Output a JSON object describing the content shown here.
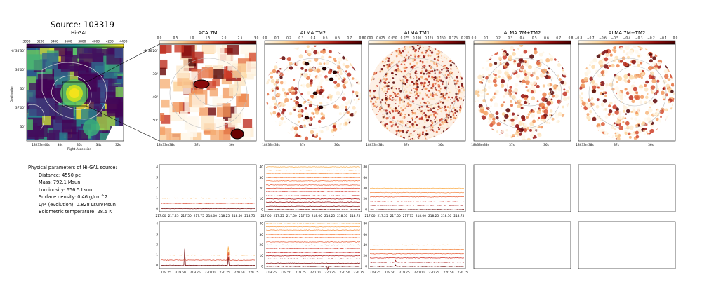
{
  "source_title": "Source: 103319",
  "params": {
    "heading": "Physical parameters of Hi-GAL source:",
    "lines": [
      "Distance: 4550 pc",
      "Mass: 792.1 Msun",
      "Luminosity: 656.5 Lsun",
      "Surface density: 0.46 g/cm^2",
      "L/M (evolution): 0.828 Lsun/Msun",
      "Bolometric temperature: 28.5 K"
    ]
  },
  "colors": {
    "accent": "#a40e0e",
    "viridis_low": "#2c5a8c",
    "viridis_high": "#f4e21b"
  },
  "chart_data": [
    {
      "type": "heatmap",
      "title": "Hi-GAL",
      "colorbar_ticks": [
        "3000",
        "3200",
        "3400",
        "3600",
        "3800",
        "4000",
        "4200",
        "4400"
      ],
      "xlabel": "Right Ascension",
      "ylabel": "Declination",
      "x_ticks": [
        "18h33m40s",
        "38s",
        "36s",
        "34s",
        "32s"
      ],
      "y_ticks": [
        "-8°35'30\"",
        "36'00\"",
        "30\"",
        "37'00\"",
        "30\""
      ]
    },
    {
      "type": "heatmap",
      "title": "ACA 7M",
      "colorbar_ticks": [
        "0.0",
        "0.5",
        "1.0",
        "1.5",
        "2.0",
        "2.5",
        "3.0"
      ],
      "x_ticks": [
        "18h33m38s",
        "37s",
        "36s"
      ],
      "y_ticks": [
        "-8°36'20\"",
        "30\"",
        "40\"",
        "50\""
      ]
    },
    {
      "type": "heatmap",
      "title": "ALMA TM2",
      "colorbar_ticks": [
        "0.0",
        "0.1",
        "0.2",
        "0.3",
        "0.4",
        "0.5",
        "0.6",
        "0.7",
        "0.8"
      ],
      "x_ticks": [
        "18h33m38s",
        "37s",
        "36s"
      ]
    },
    {
      "type": "heatmap",
      "title": "ALMA TM1",
      "colorbar_ticks": [
        "0.000",
        "0.025",
        "0.050",
        "0.075",
        "0.100",
        "0.125",
        "0.150",
        "0.175",
        "0.200"
      ],
      "x_ticks": [
        "18h33m38s",
        "37s",
        "36s"
      ]
    },
    {
      "type": "heatmap",
      "title": "ALMA 7M+TM2",
      "colorbar_ticks": [
        "0.0",
        "0.1",
        "0.2",
        "0.3",
        "0.4",
        "0.5",
        "0.6",
        "0.7",
        "0.8"
      ],
      "x_ticks": [
        "18h33m38s",
        "37s",
        "36s"
      ]
    },
    {
      "type": "heatmap",
      "title": "ALMA 7M+TM2",
      "colorbar_ticks": [
        "−0.8",
        "−0.7",
        "−0.6",
        "−0.5",
        "−0.4",
        "−0.3",
        "−0.2",
        "−0.1",
        "0.0"
      ],
      "x_ticks": [
        "18h33m38s",
        "37s",
        "36s"
      ]
    },
    {
      "type": "line",
      "panel": "ACA 7M spectra, window 1",
      "x_ticks": [
        "217.00",
        "217.25",
        "217.50",
        "217.75",
        "218.00",
        "218.25",
        "218.50",
        "218.75"
      ],
      "y_ticks": [
        "0",
        "1",
        "2",
        "3",
        "4"
      ],
      "ylim": [
        -0.3,
        4.2
      ],
      "series": [
        {
          "values": [
            0.0
          ]
        },
        {
          "values": [
            0.5
          ]
        },
        {
          "values": [
            1.0
          ]
        }
      ]
    },
    {
      "type": "line",
      "panel": "ALMA TM2 spectra, window 1",
      "x_ticks": [
        "217.00",
        "217.25",
        "217.50",
        "217.75",
        "218.00",
        "218.25",
        "218.50",
        "218.75"
      ],
      "y_ticks": [
        "0",
        "10",
        "20",
        "30",
        "40"
      ],
      "ylim": [
        -2,
        42
      ],
      "series": [
        {
          "values": [
            0
          ]
        },
        {
          "values": [
            3
          ]
        },
        {
          "values": [
            7
          ]
        },
        {
          "values": [
            10
          ]
        },
        {
          "values": [
            13
          ]
        },
        {
          "values": [
            17
          ]
        },
        {
          "values": [
            20
          ]
        },
        {
          "values": [
            23
          ]
        },
        {
          "values": [
            27
          ]
        },
        {
          "values": [
            30
          ]
        },
        {
          "values": [
            34
          ]
        },
        {
          "values": [
            37
          ]
        },
        {
          "values": [
            40
          ]
        }
      ]
    },
    {
      "type": "line",
      "panel": "ALMA TM1 spectra, window 1",
      "x_ticks": [
        "217.00",
        "217.25",
        "217.50",
        "217.75",
        "218.00",
        "218.25",
        "218.50",
        "218.75"
      ],
      "y_ticks": [
        "0",
        "20",
        "40",
        "60",
        "80"
      ],
      "ylim": [
        -4,
        84
      ],
      "series": [
        {
          "values": [
            0
          ]
        },
        {
          "values": [
            8
          ]
        },
        {
          "values": [
            16
          ]
        },
        {
          "values": [
            24
          ]
        },
        {
          "values": [
            32
          ]
        },
        {
          "values": [
            40
          ]
        }
      ]
    },
    {
      "type": "line",
      "panel": "ACA 7M spectra, window 2",
      "x_ticks": [
        "219.25",
        "219.50",
        "219.75",
        "220.00",
        "220.25",
        "220.50",
        "220.75"
      ],
      "y_ticks": [
        "0",
        "1",
        "2",
        "3",
        "4"
      ],
      "ylim": [
        -0.3,
        4.2
      ],
      "series": [
        {
          "values": [
            0.0
          ]
        },
        {
          "values": [
            0.5
          ]
        },
        {
          "values": [
            1.0
          ]
        }
      ]
    },
    {
      "type": "line",
      "panel": "ALMA TM2 spectra, window 2",
      "x_ticks": [
        "219.25",
        "219.50",
        "219.75",
        "220.00",
        "220.25",
        "220.50",
        "220.75"
      ],
      "y_ticks": [
        "0",
        "10",
        "20",
        "30",
        "40"
      ],
      "ylim": [
        -2,
        42
      ],
      "series": [
        {
          "values": [
            0
          ]
        },
        {
          "values": [
            3
          ]
        },
        {
          "values": [
            7
          ]
        },
        {
          "values": [
            10
          ]
        },
        {
          "values": [
            13
          ]
        },
        {
          "values": [
            17
          ]
        },
        {
          "values": [
            20
          ]
        },
        {
          "values": [
            23
          ]
        },
        {
          "values": [
            27
          ]
        },
        {
          "values": [
            30
          ]
        },
        {
          "values": [
            34
          ]
        },
        {
          "values": [
            37
          ]
        },
        {
          "values": [
            40
          ]
        }
      ]
    },
    {
      "type": "line",
      "panel": "ALMA TM1 spectra, window 2",
      "x_ticks": [
        "219.25",
        "219.50",
        "219.75",
        "220.00",
        "220.25",
        "220.50",
        "220.75"
      ],
      "y_ticks": [
        "0",
        "20",
        "40",
        "60",
        "80"
      ],
      "ylim": [
        -4,
        84
      ],
      "series": [
        {
          "values": [
            0
          ]
        },
        {
          "values": [
            8
          ]
        },
        {
          "values": [
            16
          ]
        },
        {
          "values": [
            24
          ]
        },
        {
          "values": [
            32
          ]
        },
        {
          "values": [
            40
          ]
        }
      ]
    }
  ]
}
